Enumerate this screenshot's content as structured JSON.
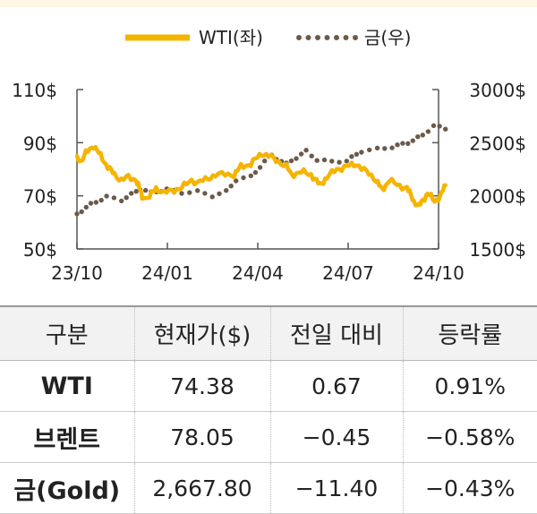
{
  "chart_data": {
    "type": "line",
    "legend": {
      "position": "top",
      "entries": [
        "WTI(좌)",
        "금(우)"
      ]
    },
    "x_ticks": [
      "23/10",
      "24/01",
      "24/04",
      "24/07",
      "24/10"
    ],
    "y_left": {
      "ticks": [
        "50$",
        "70$",
        "90$",
        "110$"
      ],
      "range": [
        50,
        110
      ]
    },
    "y_right": {
      "ticks": [
        "1500$",
        "2000$",
        "2500$",
        "3000$"
      ],
      "range": [
        1500,
        3000
      ]
    },
    "series": [
      {
        "name": "WTI(좌)",
        "axis": "left",
        "style": "solid",
        "color": "#f5b400",
        "points": [
          [
            "2023-10-01",
            85
          ],
          [
            "2023-10-05",
            83
          ],
          [
            "2023-10-10",
            86
          ],
          [
            "2023-10-18",
            89
          ],
          [
            "2023-10-25",
            85
          ],
          [
            "2023-11-01",
            81
          ],
          [
            "2023-11-08",
            78
          ],
          [
            "2023-11-15",
            76
          ],
          [
            "2023-11-22",
            77
          ],
          [
            "2023-11-30",
            76
          ],
          [
            "2023-12-06",
            70
          ],
          [
            "2023-12-12",
            69
          ],
          [
            "2023-12-20",
            73
          ],
          [
            "2023-12-28",
            71
          ],
          [
            "2024-01-05",
            72
          ],
          [
            "2024-01-15",
            73
          ],
          [
            "2024-01-25",
            76
          ],
          [
            "2024-01-31",
            75
          ],
          [
            "2024-02-08",
            76
          ],
          [
            "2024-02-18",
            78
          ],
          [
            "2024-02-28",
            78
          ],
          [
            "2024-03-08",
            78
          ],
          [
            "2024-03-15",
            81
          ],
          [
            "2024-03-25",
            82
          ],
          [
            "2024-04-05",
            86
          ],
          [
            "2024-04-12",
            85
          ],
          [
            "2024-04-22",
            83
          ],
          [
            "2024-04-30",
            81
          ],
          [
            "2024-05-05",
            78
          ],
          [
            "2024-05-15",
            79
          ],
          [
            "2024-05-25",
            78
          ],
          [
            "2024-06-03",
            74
          ],
          [
            "2024-06-10",
            77
          ],
          [
            "2024-06-20",
            80
          ],
          [
            "2024-06-30",
            81
          ],
          [
            "2024-07-10",
            82
          ],
          [
            "2024-07-20",
            79
          ],
          [
            "2024-07-30",
            76
          ],
          [
            "2024-08-05",
            72
          ],
          [
            "2024-08-12",
            76
          ],
          [
            "2024-08-20",
            74
          ],
          [
            "2024-08-30",
            73
          ],
          [
            "2024-09-06",
            68
          ],
          [
            "2024-09-11",
            66
          ],
          [
            "2024-09-20",
            71
          ],
          [
            "2024-09-27",
            68
          ],
          [
            "2024-10-03",
            70
          ],
          [
            "2024-10-08",
            74
          ]
        ]
      },
      {
        "name": "금(우)",
        "axis": "right",
        "style": "dotted",
        "color": "#6b5a4a",
        "points": [
          [
            "2023-10-01",
            1830
          ],
          [
            "2023-10-15",
            1920
          ],
          [
            "2023-10-31",
            1990
          ],
          [
            "2023-11-15",
            1960
          ],
          [
            "2023-11-30",
            2040
          ],
          [
            "2023-12-04",
            2070
          ],
          [
            "2023-12-15",
            2030
          ],
          [
            "2023-12-31",
            2060
          ],
          [
            "2024-01-15",
            2030
          ],
          [
            "2024-01-31",
            2040
          ],
          [
            "2024-02-15",
            2000
          ],
          [
            "2024-02-29",
            2040
          ],
          [
            "2024-03-10",
            2150
          ],
          [
            "2024-03-25",
            2180
          ],
          [
            "2024-04-08",
            2320
          ],
          [
            "2024-04-15",
            2380
          ],
          [
            "2024-04-30",
            2300
          ],
          [
            "2024-05-20",
            2420
          ],
          [
            "2024-05-31",
            2340
          ],
          [
            "2024-06-15",
            2320
          ],
          [
            "2024-06-30",
            2330
          ],
          [
            "2024-07-15",
            2420
          ],
          [
            "2024-07-31",
            2440
          ],
          [
            "2024-08-15",
            2460
          ],
          [
            "2024-08-31",
            2500
          ],
          [
            "2024-09-15",
            2570
          ],
          [
            "2024-09-26",
            2660
          ],
          [
            "2024-10-08",
            2630
          ]
        ]
      }
    ]
  },
  "table": {
    "headers": [
      "구분",
      "현재가($)",
      "전일 대비",
      "등락률"
    ],
    "rows": [
      [
        "WTI",
        "74.38",
        "0.67",
        "0.91%"
      ],
      [
        "브렌트",
        "78.05",
        "−0.45",
        "−0.58%"
      ],
      [
        "금(Gold)",
        "2,667.80",
        "−11.40",
        "−0.43%"
      ]
    ]
  }
}
